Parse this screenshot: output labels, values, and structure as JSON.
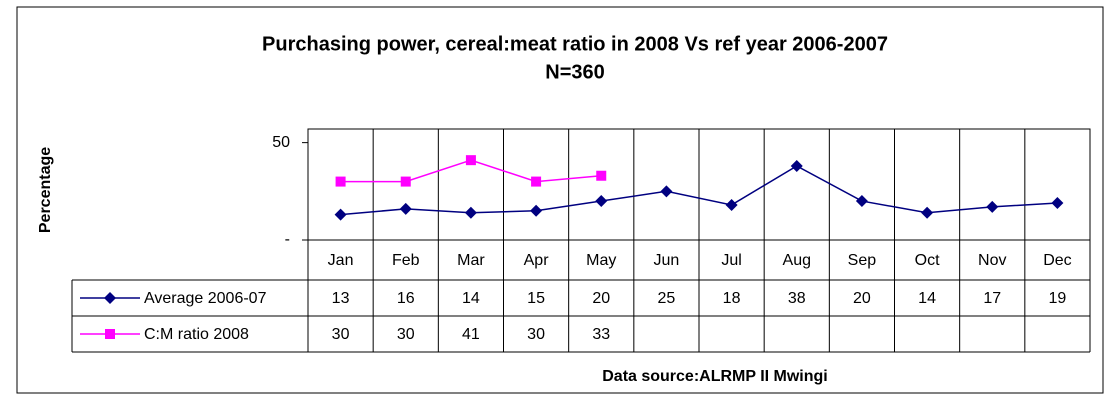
{
  "chart_data": {
    "type": "line",
    "title": "Purchasing power, cereal:meat ratio in 2008 Vs ref year 2006-2007",
    "subtitle": "N=360",
    "ylabel": "Percentage",
    "source": "Data source:ALRMP II Mwingi",
    "categories": [
      "Jan",
      "Feb",
      "Mar",
      "Apr",
      "May",
      "Jun",
      "Jul",
      "Aug",
      "Sep",
      "Oct",
      "Nov",
      "Dec"
    ],
    "series": [
      {
        "name": "Average 2006-07",
        "color": "#000080",
        "marker": "diamond",
        "values": [
          13,
          16,
          14,
          15,
          20,
          25,
          18,
          38,
          20,
          14,
          17,
          19
        ]
      },
      {
        "name": "C:M ratio 2008",
        "color": "#ff00ff",
        "marker": "square",
        "values": [
          30,
          30,
          41,
          30,
          33,
          null,
          null,
          null,
          null,
          null,
          null,
          null
        ]
      }
    ],
    "ylim": [
      0,
      57
    ],
    "yticks": [
      {
        "value": 0,
        "label": "-"
      },
      50
    ],
    "data_table": true
  }
}
